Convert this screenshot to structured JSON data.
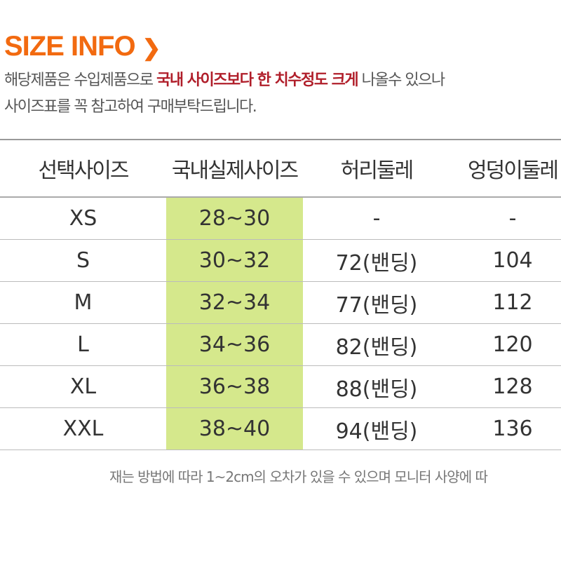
{
  "title": "SIZE INFO",
  "title_icon": "chevron-right-icon",
  "notice": {
    "line1_pre": "해당제품은 수입제품으로 ",
    "line1_highlight": "국내 사이즈보다 한 치수정도 크게",
    "line1_post": " 나올수 있으나",
    "line2": "사이즈표를 꼭 참고하여 구매부탁드립니다."
  },
  "colors": {
    "title": "#f26a10",
    "highlight": "#b01e2a",
    "column_fill": "#d5e88c"
  },
  "table": {
    "headers": [
      "선택사이즈",
      "국내실제사이즈",
      "허리둘레",
      "엉덩이둘레"
    ],
    "rows": [
      [
        "XS",
        "28~30",
        "-",
        "-"
      ],
      [
        "S",
        "30~32",
        "72(밴딩)",
        "104"
      ],
      [
        "M",
        "32~34",
        "77(밴딩)",
        "112"
      ],
      [
        "L",
        "34~36",
        "82(밴딩)",
        "120"
      ],
      [
        "XL",
        "36~38",
        "88(밴딩)",
        "128"
      ],
      [
        "XXL",
        "38~40",
        "94(밴딩)",
        "136"
      ]
    ]
  },
  "footnote": "재는 방법에 따라 1~2cm의 오차가 있을 수 있으며 모니터 사양에 따"
}
